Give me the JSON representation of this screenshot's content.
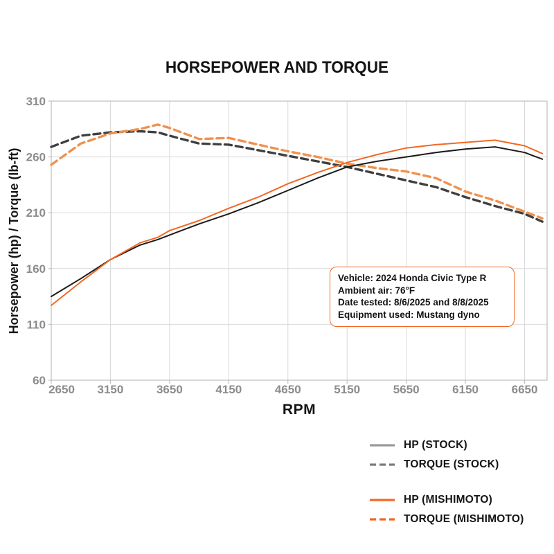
{
  "chart_data": {
    "type": "line",
    "title": "HORSEPOWER AND TORQUE",
    "xlabel": "RPM",
    "ylabel": "Horsepower (hp) / Torque (lb-ft)",
    "xlim": [
      2650,
      6840
    ],
    "ylim": [
      60,
      310
    ],
    "xticks": [
      2650,
      3150,
      3650,
      4150,
      4650,
      5150,
      5650,
      6150,
      6650
    ],
    "yticks": [
      60,
      110,
      160,
      210,
      260,
      310
    ],
    "grid": true,
    "legend_position": "below-right",
    "x_rpm": [
      2650,
      2900,
      3150,
      3400,
      3550,
      3650,
      3900,
      4150,
      4400,
      4650,
      4900,
      5150,
      5400,
      5650,
      5900,
      6150,
      6400,
      6650,
      6800
    ],
    "series": [
      {
        "name": "HP (STOCK)",
        "style": "solid",
        "color": "#1b1b1b",
        "legend_color": "#9a9a9a",
        "values": [
          135,
          151,
          168,
          181,
          186,
          190,
          200,
          209,
          219,
          230,
          241,
          251,
          256,
          260,
          264,
          267,
          269,
          264,
          258
        ]
      },
      {
        "name": "TORQUE (STOCK)",
        "style": "dashed",
        "color": "#3f3f3f",
        "legend_color": "#7a7a7a",
        "values": [
          269,
          279,
          282,
          283,
          282,
          279,
          272,
          271,
          266,
          261,
          256,
          251,
          245,
          239,
          233,
          224,
          216,
          209,
          202
        ]
      },
      {
        "name": "HP (MISHIMOTO)",
        "style": "solid",
        "color": "#f26822",
        "legend_color": "#f26822",
        "values": [
          127,
          148,
          168,
          183,
          188,
          194,
          203,
          214,
          224,
          236,
          246,
          255,
          262,
          268,
          271,
          273,
          275,
          270,
          263
        ]
      },
      {
        "name": "TORQUE (MISHIMOTO)",
        "style": "dashed",
        "color": "#f0914e",
        "legend_color": "#f26822",
        "values": [
          253,
          272,
          281,
          285,
          289,
          286,
          276,
          277,
          271,
          265,
          260,
          254,
          250,
          247,
          241,
          229,
          221,
          211,
          205
        ]
      }
    ],
    "legend_break_after": 2,
    "annotation": {
      "lines": [
        "Vehicle: 2024 Honda Civic Type R",
        "Ambient air: 76°F",
        "Date tested: 8/6/2025 and 8/8/2025",
        "Equipment used: Mustang dyno"
      ],
      "border_color": "#f26822"
    },
    "colors": {
      "tick_label": "#8c8c8c",
      "grid": "#d9d9d9",
      "spine": "#bdbdbd",
      "text": "#141414"
    }
  }
}
